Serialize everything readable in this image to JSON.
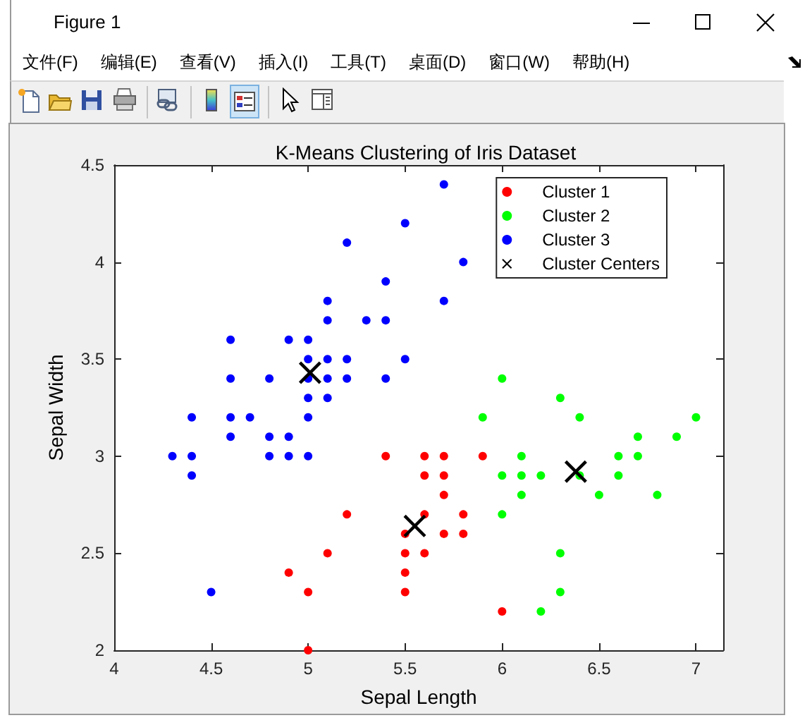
{
  "chart_data": {
    "type": "scatter",
    "title": "K-Means Clustering of Iris Dataset",
    "xlabel": "Sepal Length",
    "ylabel": "Sepal Width",
    "annotations": [
      "Figure 1",
      "文件(F)",
      "编辑(E)",
      "查看(V)",
      "插入(I)",
      "工具(T)",
      "桌面(D)",
      "窗口(W)",
      "帮助(H)"
    ],
    "series": [
      {
        "name": "Cluster 1",
        "color": "#ff0000",
        "x": [
          5.4,
          5.6,
          5.7,
          5.9,
          5.6,
          5.7,
          5.7,
          5.2,
          5.6,
          5.8,
          5.5,
          5.7,
          5.8,
          5.1,
          5.5,
          5.6,
          4.9,
          5.5,
          5.0,
          5.5,
          6.0,
          5.0
        ],
        "values": [
          3.0,
          3.0,
          3.0,
          3.0,
          2.9,
          2.9,
          2.8,
          2.7,
          2.7,
          2.7,
          2.6,
          2.6,
          2.6,
          2.5,
          2.5,
          2.5,
          2.4,
          2.4,
          2.3,
          2.3,
          2.2,
          2.0
        ]
      },
      {
        "name": "Cluster 2",
        "color": "#00ff00",
        "x": [
          6.0,
          6.3,
          5.9,
          6.4,
          7.0,
          6.7,
          6.9,
          6.1,
          6.6,
          6.7,
          6.0,
          6.1,
          6.2,
          6.4,
          6.6,
          6.1,
          6.5,
          6.8,
          6.0,
          6.3,
          6.3,
          6.2
        ],
        "values": [
          3.4,
          3.3,
          3.2,
          3.2,
          3.2,
          3.1,
          3.1,
          3.0,
          3.0,
          3.0,
          2.9,
          2.9,
          2.9,
          2.9,
          2.9,
          2.8,
          2.8,
          2.8,
          2.7,
          2.5,
          2.3,
          2.2
        ]
      },
      {
        "name": "Cluster 3",
        "color": "#0000ff",
        "x": [
          5.7,
          5.5,
          5.2,
          5.8,
          5.4,
          5.1,
          5.7,
          5.1,
          5.3,
          5.4,
          4.6,
          4.9,
          5.0,
          5.0,
          5.1,
          5.2,
          5.5,
          4.6,
          4.8,
          5.0,
          5.1,
          5.2,
          5.4,
          5.0,
          5.1,
          4.4,
          4.6,
          4.7,
          5.0,
          4.6,
          4.8,
          4.9,
          4.3,
          4.4,
          4.8,
          4.9,
          5.0,
          4.4,
          4.5
        ],
        "values": [
          4.4,
          4.2,
          4.1,
          4.0,
          3.9,
          3.8,
          3.8,
          3.7,
          3.7,
          3.7,
          3.6,
          3.6,
          3.6,
          3.5,
          3.5,
          3.5,
          3.5,
          3.4,
          3.4,
          3.4,
          3.4,
          3.4,
          3.4,
          3.3,
          3.3,
          3.2,
          3.2,
          3.2,
          3.2,
          3.1,
          3.1,
          3.1,
          3.0,
          3.0,
          3.0,
          3.0,
          3.0,
          2.9,
          2.3
        ]
      },
      {
        "name": "Cluster Centers",
        "color": "#000000",
        "marker": "cross",
        "x": [
          5.01,
          5.55,
          6.38
        ],
        "values": [
          3.43,
          2.64,
          2.92
        ]
      }
    ],
    "xlim": [
      4,
      7.14
    ],
    "ylim": [
      2,
      4.5
    ],
    "xticks": [
      4,
      4.5,
      5,
      5.5,
      6,
      6.5,
      7
    ],
    "yticks": [
      2,
      2.5,
      3,
      3.5,
      4,
      4.5
    ],
    "grid": false,
    "legend": "top right",
    "marker": "circle"
  }
}
